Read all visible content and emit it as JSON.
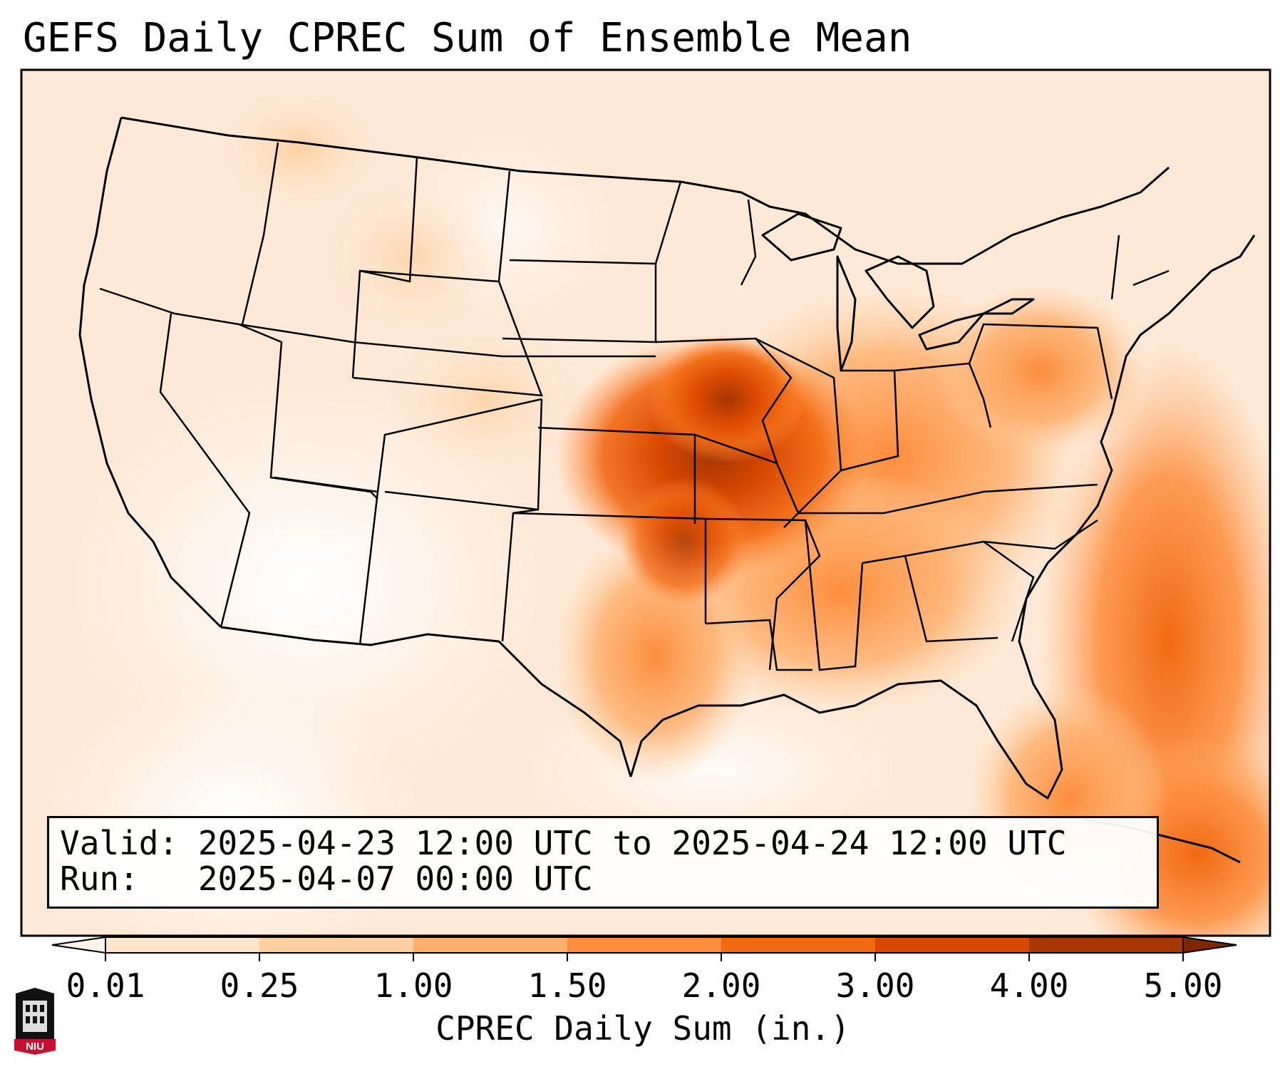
{
  "title": "GEFS Daily CPREC Sum of Ensemble Mean",
  "info": {
    "valid": "Valid: 2025-04-23 12:00 UTC to 2025-04-24 12:00 UTC",
    "run": "Run:   2025-04-07 00:00 UTC"
  },
  "colorbar": {
    "label": "CPREC Daily Sum (in.)",
    "ticks": [
      "0.01",
      "0.25",
      "1.00",
      "1.50",
      "2.00",
      "3.00",
      "4.00",
      "5.00"
    ],
    "colors": [
      "#fff5eb",
      "#fee6ce",
      "#fdd0a2",
      "#fdae6b",
      "#fd8d3c",
      "#f16913",
      "#d94801",
      "#a63603",
      "#7f2704"
    ]
  },
  "logo": {
    "text": "NIU",
    "colors": [
      "#c8102e",
      "#000000"
    ]
  },
  "map_colors": {
    "background": "#fff8f0",
    "land_line": "#000000"
  }
}
